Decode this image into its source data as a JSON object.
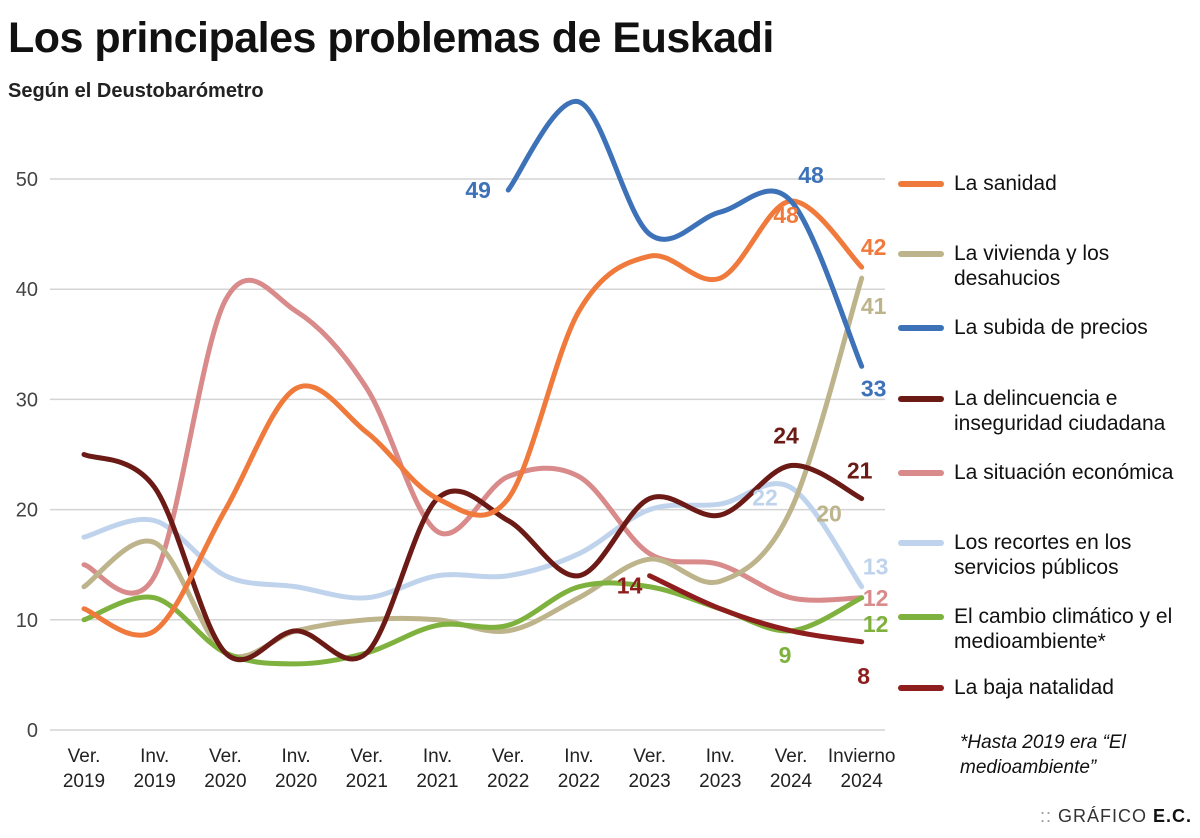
{
  "title": "Los principales problemas de Euskadi",
  "subtitle": "Según el Deustobarómetro",
  "footnote": "*Hasta 2019 era “El medioambiente”",
  "credit": {
    "prefix": "GRÁFICO",
    "brand": "E.C."
  },
  "chart_data": {
    "type": "line",
    "title": "Los principales problemas de Euskadi",
    "subtitle": "Según el Deustobarómetro",
    "categories": [
      "Ver. 2019",
      "Inv. 2019",
      "Ver. 2020",
      "Inv. 2020",
      "Ver. 2021",
      "Inv. 2021",
      "Ver. 2022",
      "Inv. 2022",
      "Ver. 2023",
      "Inv. 2023",
      "Ver. 2024",
      "Invierno 2024"
    ],
    "category_lines": [
      [
        "Ver.",
        "2019"
      ],
      [
        "Inv.",
        "2019"
      ],
      [
        "Ver.",
        "2020"
      ],
      [
        "Inv.",
        "2020"
      ],
      [
        "Ver.",
        "2021"
      ],
      [
        "Inv.",
        "2021"
      ],
      [
        "Ver.",
        "2022"
      ],
      [
        "Inv.",
        "2022"
      ],
      [
        "Ver.",
        "2023"
      ],
      [
        "Inv.",
        "2023"
      ],
      [
        "Ver.",
        "2024"
      ],
      [
        "Invierno",
        "2024"
      ]
    ],
    "ylim": [
      0,
      55
    ],
    "yticks": [
      0,
      10,
      20,
      30,
      40,
      50
    ],
    "grid": true,
    "legend": "right",
    "series": [
      {
        "name": "La sanidad",
        "color": "#f07a3c",
        "values": [
          11,
          9,
          20,
          31,
          27,
          21,
          21,
          38,
          43,
          41,
          48,
          42
        ]
      },
      {
        "name": "La vivienda y los desahucios",
        "color": "#bdb48c",
        "values": [
          13,
          17,
          7,
          9,
          10,
          10,
          9,
          12,
          15.5,
          13.5,
          20,
          41
        ]
      },
      {
        "name": "La subida de precios",
        "color": "#3d72b8",
        "values": [
          null,
          null,
          null,
          null,
          null,
          null,
          49,
          57,
          45,
          47,
          48,
          33
        ]
      },
      {
        "name": "La delincuencia e inseguridad ciudadana",
        "color": "#6b1a16",
        "values": [
          25,
          22,
          7,
          9,
          7,
          21,
          19,
          14,
          21,
          19.5,
          24,
          21
        ]
      },
      {
        "name": "La situación económica",
        "color": "#d98a8a",
        "values": [
          15,
          14,
          39,
          38,
          31,
          18,
          23,
          23,
          16,
          15,
          12,
          12
        ]
      },
      {
        "name": "Los recortes en los servicios públicos",
        "color": "#bfd4ec",
        "values": [
          17.5,
          19,
          14,
          13,
          12,
          14,
          14,
          16,
          20,
          20.5,
          22,
          13
        ]
      },
      {
        "name": "El cambio climático y el medioambiente*",
        "color": "#7fb13e",
        "values": [
          10,
          12,
          7,
          6,
          7,
          9.5,
          9.5,
          13,
          13,
          11,
          9,
          12
        ]
      },
      {
        "name": "La baja natalidad",
        "color": "#8e1d1d",
        "values": [
          null,
          null,
          null,
          null,
          null,
          null,
          null,
          null,
          14,
          11,
          9,
          8
        ]
      }
    ],
    "data_labels": [
      {
        "series": 2,
        "index": 6,
        "text": "49"
      },
      {
        "series": 2,
        "index": 10,
        "text": "48"
      },
      {
        "series": 2,
        "index": 11,
        "text": "33"
      },
      {
        "series": 0,
        "index": 10,
        "text": "48"
      },
      {
        "series": 0,
        "index": 11,
        "text": "42"
      },
      {
        "series": 1,
        "index": 11,
        "text": "41"
      },
      {
        "series": 1,
        "index": 10,
        "text": "20"
      },
      {
        "series": 3,
        "index": 10,
        "text": "24"
      },
      {
        "series": 3,
        "index": 11,
        "text": "21"
      },
      {
        "series": 5,
        "index": 10,
        "text": "22"
      },
      {
        "series": 5,
        "index": 11,
        "text": "13"
      },
      {
        "series": 4,
        "index": 11,
        "text": "12"
      },
      {
        "series": 6,
        "index": 11,
        "text": "12"
      },
      {
        "series": 6,
        "index": 10,
        "text": "9"
      },
      {
        "series": 7,
        "index": 8,
        "text": "14"
      },
      {
        "series": 7,
        "index": 11,
        "text": "8"
      }
    ]
  }
}
